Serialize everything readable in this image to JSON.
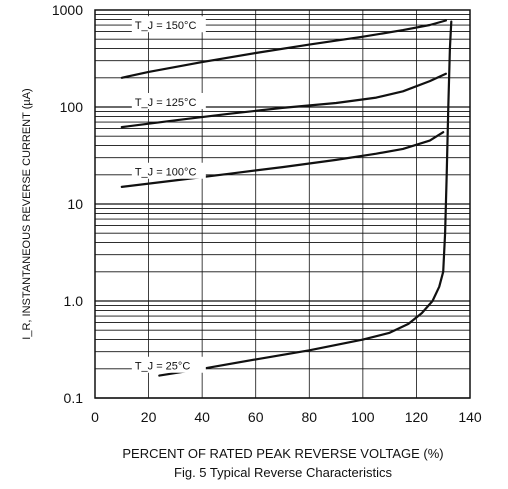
{
  "chart_data": {
    "type": "line",
    "title": "Fig. 5  Typical Reverse Characteristics",
    "xlabel": "PERCENT OF RATED PEAK REVERSE VOLTAGE (%)",
    "ylabel": "I_R, INSTANTANEOUS REVERSE CURRENT (µA)",
    "xlim": [
      0,
      140
    ],
    "ylim": [
      0.1,
      1000
    ],
    "yscale": "log",
    "x_ticks": [
      "0",
      "20",
      "40",
      "60",
      "80",
      "100",
      "120",
      "140"
    ],
    "y_ticks": [
      "0.1",
      "1.0",
      "10",
      "100",
      "1000"
    ],
    "grid": true,
    "series": [
      {
        "name": "T_J = 150°C",
        "label_x": 13,
        "label_y": 680,
        "points": [
          [
            10,
            200
          ],
          [
            20,
            230
          ],
          [
            40,
            290
          ],
          [
            60,
            360
          ],
          [
            80,
            440
          ],
          [
            100,
            530
          ],
          [
            115,
            620
          ],
          [
            125,
            700
          ],
          [
            131,
            780
          ]
        ]
      },
      {
        "name": "T_J = 125°C",
        "label_x": 13,
        "label_y": 110,
        "points": [
          [
            10,
            62
          ],
          [
            30,
            73
          ],
          [
            50,
            85
          ],
          [
            70,
            98
          ],
          [
            90,
            110
          ],
          [
            105,
            125
          ],
          [
            115,
            145
          ],
          [
            125,
            185
          ],
          [
            131,
            220
          ]
        ]
      },
      {
        "name": "T_J = 100°C",
        "label_x": 13,
        "label_y": 21,
        "points": [
          [
            10,
            15
          ],
          [
            30,
            17.5
          ],
          [
            50,
            20.5
          ],
          [
            70,
            24
          ],
          [
            90,
            28.5
          ],
          [
            105,
            33
          ],
          [
            115,
            37
          ],
          [
            125,
            45
          ],
          [
            130,
            55
          ]
        ]
      },
      {
        "name": "T_J = 25°C",
        "label_x": 13,
        "label_y": 0.21,
        "points": [
          [
            24,
            0.17
          ],
          [
            40,
            0.2
          ],
          [
            60,
            0.25
          ],
          [
            80,
            0.31
          ],
          [
            100,
            0.4
          ],
          [
            110,
            0.47
          ],
          [
            117,
            0.58
          ],
          [
            122,
            0.75
          ],
          [
            126,
            1.0
          ],
          [
            128.5,
            1.4
          ],
          [
            130,
            2.0
          ],
          [
            130.7,
            5
          ],
          [
            131.3,
            20
          ],
          [
            131.9,
            100
          ],
          [
            132.5,
            400
          ],
          [
            133,
            760
          ]
        ]
      }
    ]
  }
}
